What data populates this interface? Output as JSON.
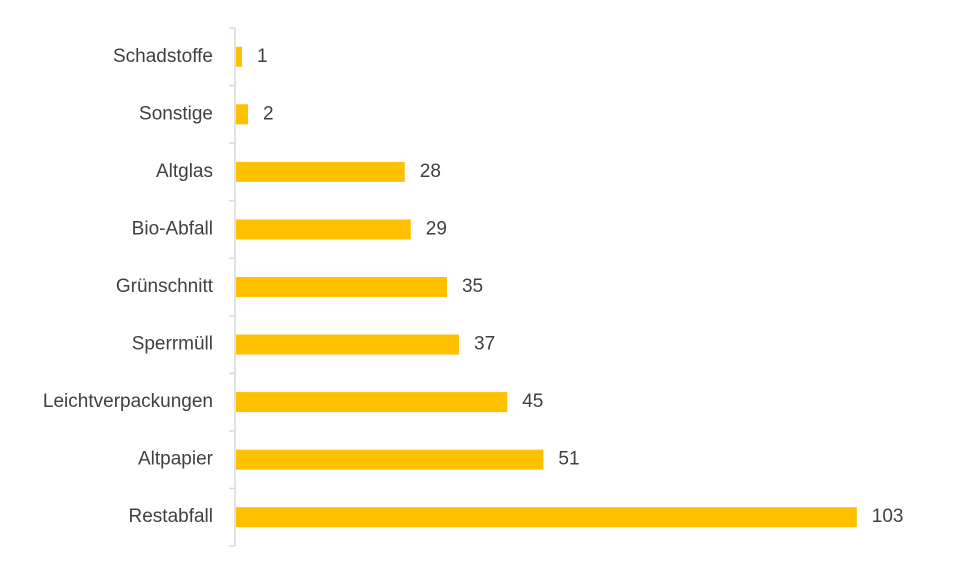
{
  "chart_data": {
    "type": "bar",
    "orientation": "horizontal",
    "categories": [
      "Schadstoffe",
      "Sonstige",
      "Altglas",
      "Bio-Abfall",
      "Grünschnitt",
      "Sperrmüll",
      "Leichtverpackungen",
      "Altpapier",
      "Restabfall"
    ],
    "values": [
      1,
      2,
      28,
      29,
      35,
      37,
      45,
      51,
      103
    ],
    "title": "",
    "xlabel": "",
    "ylabel": "",
    "xlim": [
      0,
      110
    ],
    "grid": false,
    "legend": "none",
    "data_labels": true,
    "colors": {
      "bar": "#FFC000",
      "axis": "#D9D9D9",
      "text": "#404040"
    }
  }
}
